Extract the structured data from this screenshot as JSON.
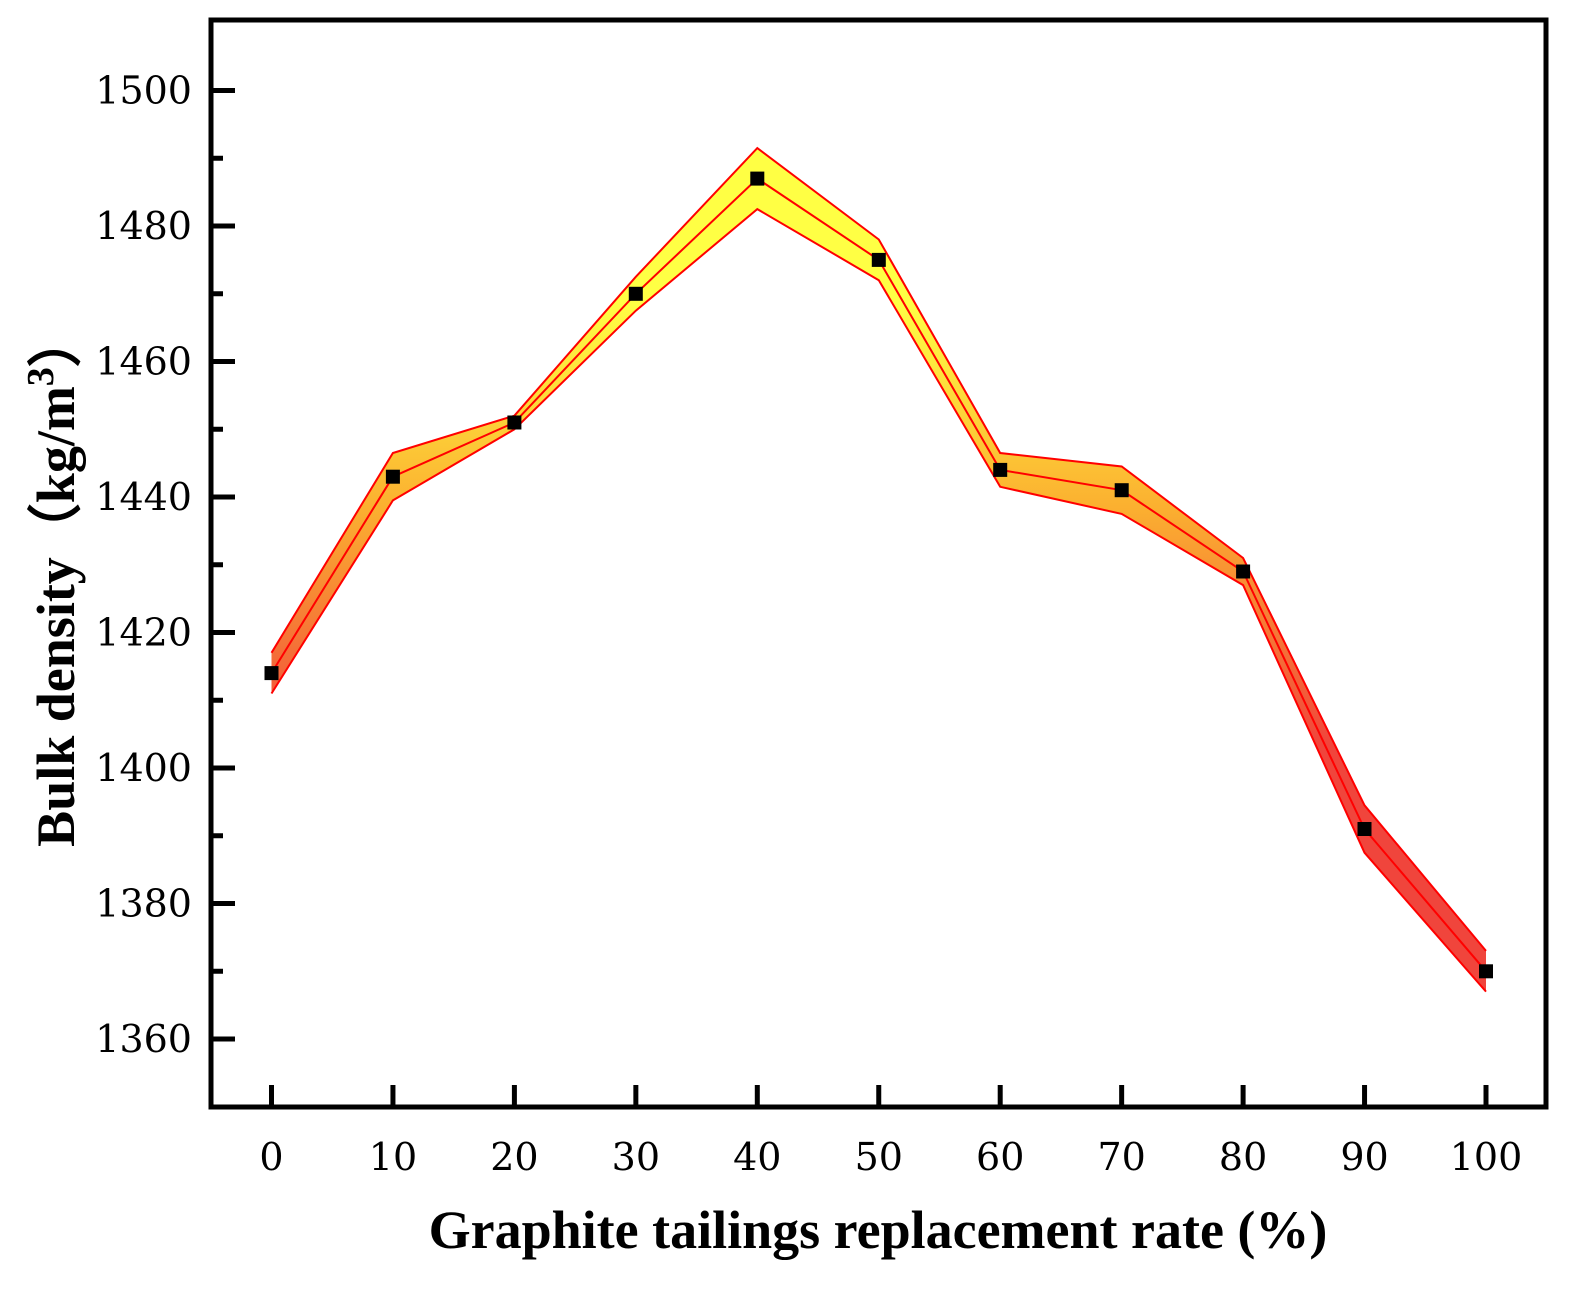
{
  "chart_data": {
    "type": "line",
    "title": "",
    "xlabel": "Graphite tailings replacement rate (%)",
    "ylabel": "Bulk density（kg/m",
    "ylabel_sup": "3",
    "ylabel_close": "）",
    "x": [
      0,
      10,
      20,
      30,
      40,
      50,
      60,
      70,
      80,
      90,
      100
    ],
    "xticks": [
      "0",
      "10",
      "20",
      "30",
      "40",
      "50",
      "60",
      "70",
      "80",
      "90",
      "100"
    ],
    "yticks": [
      "1360",
      "1380",
      "1400",
      "1420",
      "1440",
      "1460",
      "1480",
      "1500"
    ],
    "xlim": [
      -5,
      105
    ],
    "ylim": [
      1350,
      1510
    ],
    "series": [
      {
        "name": "Bulk density",
        "values": [
          1414,
          1443,
          1451,
          1470,
          1487,
          1475,
          1444,
          1441,
          1429,
          1391,
          1370
        ],
        "band_upper": [
          1417,
          1446.5,
          1452,
          1472.5,
          1491.5,
          1478,
          1446.5,
          1444.5,
          1431,
          1394.5,
          1373
        ],
        "band_lower": [
          1411,
          1439.5,
          1450,
          1467.5,
          1482.5,
          1472,
          1441.5,
          1437.5,
          1427,
          1387.5,
          1367
        ],
        "marker": "square"
      }
    ],
    "colors": {
      "line": "#ff0000",
      "marker": "#000000",
      "band_high": "#ffff44",
      "band_low": "#f0453c"
    },
    "grid": false,
    "legend": "none"
  }
}
